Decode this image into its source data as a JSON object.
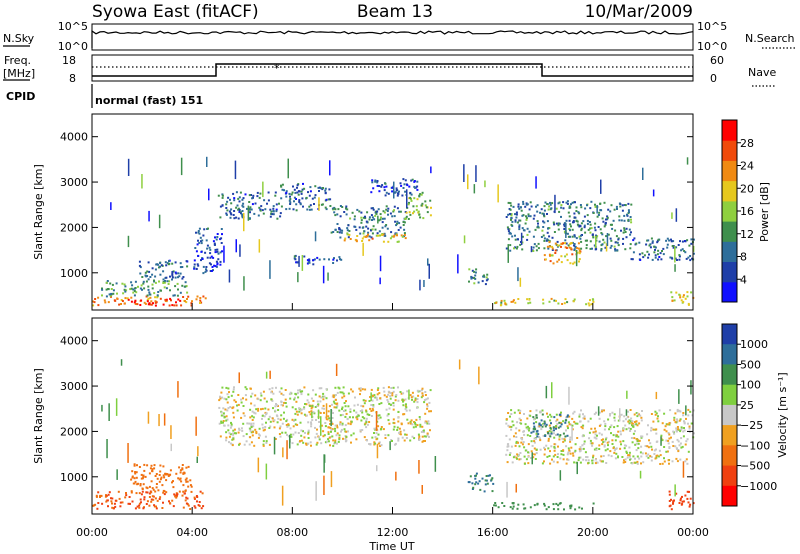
{
  "header": {
    "left": "Syowa East (fitACF)",
    "center": "Beam 13",
    "right": "10/Mar/2009"
  },
  "strips": {
    "nsky_label": "N.Sky",
    "nsky_ticks": [
      "10^5",
      "10^0"
    ],
    "nsearch_label": "N.Search",
    "nsearch_ticks": [
      "10^5",
      "10^0"
    ],
    "freq_label_1": "Freq.",
    "freq_label_2": "[MHz]",
    "freq_ticks": [
      "18",
      "8"
    ],
    "nave_label": "Nave",
    "nave_ticks": [
      "60",
      "0"
    ],
    "cpid_label": "CPID",
    "cpid_value": "normal (fast) 151"
  },
  "colors": {
    "power_scale": [
      "#1010ff",
      "#1f3fa8",
      "#2e6e9a",
      "#3f8f4d",
      "#8fcf3f",
      "#e6c81e",
      "#f08a12",
      "#f04a0a",
      "#ff0000"
    ],
    "velocity_scale": [
      "#1f3fa8",
      "#2e6e9a",
      "#3f8f4d",
      "#7fcf3f",
      "#c8c8c8",
      "#f0a020",
      "#f07010",
      "#f04010",
      "#ff0000"
    ],
    "gray": "#c0c0c0"
  },
  "chart_data": [
    {
      "type": "heatmap",
      "title": "",
      "xlabel": "Time UT",
      "ylabel": "Slant Range [km]",
      "ylim": [
        180,
        4500
      ],
      "xlim": [
        0,
        24
      ],
      "x_ticks": [
        "00:00",
        "04:00",
        "08:00",
        "12:00",
        "16:00",
        "20:00",
        "00:00"
      ],
      "y_ticks": [
        "1000",
        "2000",
        "3000",
        "4000"
      ],
      "colorbar_label": "Power [dB]",
      "colorbar_ticks": [
        "4",
        "8",
        "12",
        "16",
        "20",
        "24",
        "28"
      ],
      "colorbar_range": [
        0,
        32
      ],
      "blobs": [
        {
          "x0": 0.0,
          "x1": 4.5,
          "r0": 300,
          "r1": 500,
          "v": 24
        },
        {
          "x0": 1.5,
          "x1": 3.5,
          "r0": 300,
          "r1": 450,
          "v": 30
        },
        {
          "x0": 0.3,
          "x1": 3.8,
          "r0": 500,
          "r1": 850,
          "v": 12
        },
        {
          "x0": 1.8,
          "x1": 3.8,
          "r0": 850,
          "r1": 1300,
          "v": 8
        },
        {
          "x0": 4.0,
          "x1": 5.2,
          "r0": 1000,
          "r1": 2000,
          "v": 6
        },
        {
          "x0": 5.0,
          "x1": 7.5,
          "r0": 2200,
          "r1": 2800,
          "v": 8
        },
        {
          "x0": 7.5,
          "x1": 9.5,
          "r0": 2400,
          "r1": 3000,
          "v": 8
        },
        {
          "x0": 9.5,
          "x1": 12.5,
          "r0": 1800,
          "r1": 2500,
          "v": 10
        },
        {
          "x0": 10.0,
          "x1": 12.5,
          "r0": 1700,
          "r1": 1900,
          "v": 20
        },
        {
          "x0": 12.5,
          "x1": 13.5,
          "r0": 2200,
          "r1": 2800,
          "v": 16
        },
        {
          "x0": 11.0,
          "x1": 13.0,
          "r0": 2700,
          "r1": 3100,
          "v": 6
        },
        {
          "x0": 8.0,
          "x1": 10.0,
          "r0": 1200,
          "r1": 1400,
          "v": 6
        },
        {
          "x0": 15.0,
          "x1": 15.8,
          "r0": 700,
          "r1": 1100,
          "v": 10
        },
        {
          "x0": 16.5,
          "x1": 21.5,
          "r0": 1500,
          "r1": 2600,
          "v": 10
        },
        {
          "x0": 18.0,
          "x1": 19.5,
          "r0": 1200,
          "r1": 1700,
          "v": 22
        },
        {
          "x0": 21.5,
          "x1": 24.0,
          "r0": 1300,
          "r1": 1800,
          "v": 8
        },
        {
          "x0": 16.0,
          "x1": 20.0,
          "r0": 300,
          "r1": 450,
          "v": 18
        },
        {
          "x0": 23.0,
          "x1": 24.0,
          "r0": 300,
          "r1": 600,
          "v": 20
        }
      ]
    },
    {
      "type": "heatmap",
      "title": "",
      "xlabel": "Time UT",
      "ylabel": "Slant Range [km]",
      "ylim": [
        180,
        4500
      ],
      "xlim": [
        0,
        24
      ],
      "x_ticks": [
        "00:00",
        "04:00",
        "08:00",
        "12:00",
        "16:00",
        "20:00",
        "00:00"
      ],
      "y_ticks": [
        "1000",
        "2000",
        "3000",
        "4000"
      ],
      "colorbar_label": "Velocity [m s⁻¹]",
      "colorbar_ticks": [
        "1000",
        "500",
        "100",
        "25",
        "−25",
        "−100",
        "−500",
        "−1000"
      ],
      "blobs": [
        {
          "x0": 0.0,
          "x1": 4.5,
          "r0": 300,
          "r1": 700,
          "v": -300
        },
        {
          "x0": 1.5,
          "x1": 4.0,
          "r0": 700,
          "r1": 1300,
          "v": -200
        },
        {
          "x0": 5.0,
          "x1": 13.5,
          "r0": 1700,
          "r1": 3000,
          "v": 0
        },
        {
          "x0": 15.0,
          "x1": 16.0,
          "r0": 700,
          "r1": 1100,
          "v": 300
        },
        {
          "x0": 16.5,
          "x1": 24.0,
          "r0": 1300,
          "r1": 2500,
          "v": 0
        },
        {
          "x0": 17.5,
          "x1": 19.0,
          "r0": 1900,
          "r1": 2400,
          "v": 300
        },
        {
          "x0": 16.0,
          "x1": 20.0,
          "r0": 300,
          "r1": 450,
          "v": 200
        },
        {
          "x0": 23.0,
          "x1": 24.0,
          "r0": 300,
          "r1": 700,
          "v": -400
        }
      ]
    }
  ]
}
